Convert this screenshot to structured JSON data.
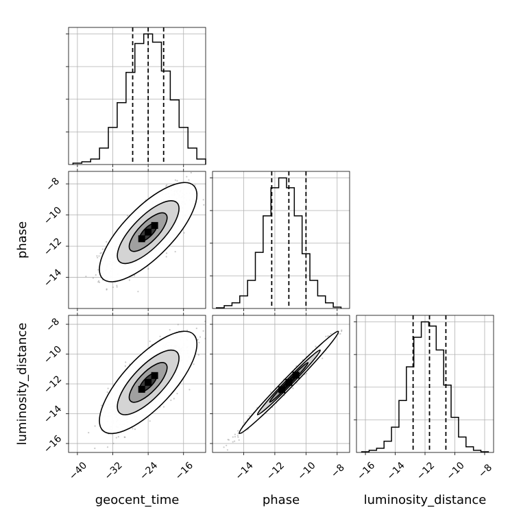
{
  "chart_data": {
    "type": "corner",
    "parameters": [
      "geocent_time",
      "phase",
      "luminosity_distance"
    ],
    "ranges": {
      "geocent_time": [
        -42,
        -11
      ],
      "phase": [
        -16,
        -7.2
      ],
      "luminosity_distance": [
        -16.6,
        -7.4
      ]
    },
    "ticks": {
      "geocent_time": [
        -40,
        -32,
        -24,
        -16
      ],
      "phase": [
        -14,
        -12,
        -10,
        -8
      ],
      "luminosity_distance": [
        -16,
        -14,
        -12,
        -10,
        -8
      ]
    },
    "tick_labels": {
      "geocent_time": [
        "−40",
        "−32",
        "−24",
        "−16"
      ],
      "phase": [
        "−14",
        "−12",
        "−10",
        "−8"
      ],
      "luminosity_distance": [
        "−16",
        "−14",
        "−12",
        "−10",
        "−8"
      ]
    },
    "row_tick_labels": {
      "phase": [
        "−14",
        "−12",
        "−10",
        "−8"
      ],
      "luminosity_distance": [
        "−16",
        "−14",
        "−12",
        "−10",
        "−8"
      ]
    },
    "histograms": {
      "geocent_time": {
        "edges": [
          -41,
          -39,
          -37,
          -35,
          -33,
          -31,
          -29,
          -27,
          -25,
          -23,
          -21,
          -19,
          -17,
          -15,
          -13,
          -11
        ],
        "counts": [
          1,
          2,
          4,
          12,
          27,
          45,
          67,
          88,
          95,
          89,
          68,
          47,
          27,
          12,
          4
        ],
        "quantiles": [
          -27.5,
          -24.0,
          -20.5
        ]
      },
      "phase": {
        "edges": [
          -15.75,
          -15.25,
          -14.75,
          -14.25,
          -13.75,
          -13.25,
          -12.75,
          -12.25,
          -11.75,
          -11.25,
          -10.75,
          -10.25,
          -9.75,
          -9.25,
          -8.75,
          -8.25,
          -7.75
        ],
        "counts": [
          0.5,
          2,
          4,
          9,
          20,
          40,
          66,
          86,
          93,
          86,
          66,
          39,
          20,
          9,
          4,
          1
        ],
        "quantiles": [
          -12.2,
          -11.1,
          -10.0
        ]
      },
      "luminosity_distance": {
        "edges": [
          -16.25,
          -15.75,
          -15.25,
          -14.75,
          -14.25,
          -13.75,
          -13.25,
          -12.75,
          -12.25,
          -11.75,
          -11.25,
          -10.75,
          -10.25,
          -9.75,
          -9.25,
          -8.75,
          -8.25,
          -7.75
        ],
        "counts": [
          0.5,
          1.5,
          3,
          8,
          18,
          37,
          61,
          82,
          93,
          90,
          73,
          48,
          25,
          11,
          4,
          1.5,
          0.5
        ],
        "quantiles": [
          -12.8,
          -11.7,
          -10.6
        ]
      }
    },
    "joint": [
      {
        "x": "geocent_time",
        "y": "phase",
        "mean": [
          -24.0,
          -11.1
        ],
        "sigma": [
          4.5,
          1.3
        ],
        "rho": 0.75
      },
      {
        "x": "geocent_time",
        "y": "luminosity_distance",
        "mean": [
          -24.0,
          -11.9
        ],
        "sigma": [
          4.5,
          1.4
        ],
        "rho": 0.75
      },
      {
        "x": "phase",
        "y": "luminosity_distance",
        "mean": [
          -11.1,
          -11.9
        ],
        "sigma": [
          1.3,
          1.4
        ],
        "rho": 0.99
      }
    ],
    "grid": true
  }
}
